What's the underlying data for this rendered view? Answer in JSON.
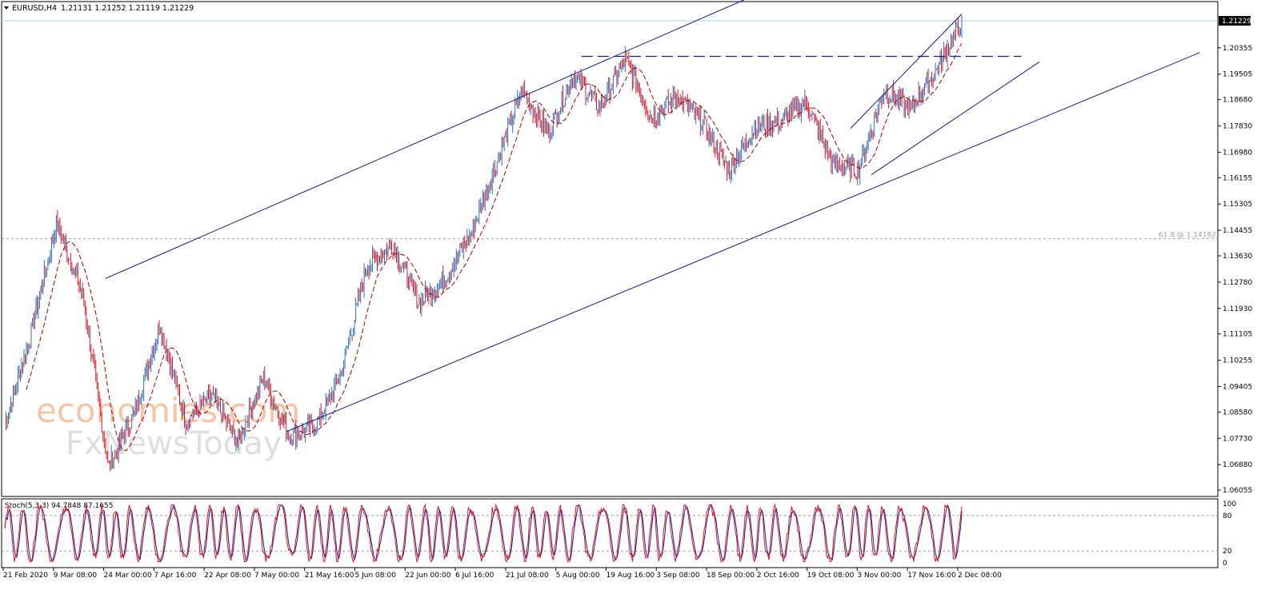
{
  "header": {
    "symbol_label": "EURUSD,H4",
    "quote_text": "1.21131 1.21252 1.21119 1.21229"
  },
  "watermark": {
    "line1": "economies.com",
    "line2": "FxNewsToday"
  },
  "colors": {
    "up_candle": "#2e6fba",
    "down_candle": "#e0141e",
    "trendline": "#1a1a8c",
    "moving_average": "#a00000",
    "stoch_main": "#e0141e",
    "stoch_signal": "#1a1a8c",
    "price_badge": "#000000",
    "watermark": "#f5b183"
  },
  "chart_data": [
    {
      "type": "candlestick",
      "name": "EURUSD,H4",
      "price_axis_ticks": [
        "1.20355",
        "1.19505",
        "1.18680",
        "1.17830",
        "1.16980",
        "1.16155",
        "1.15305",
        "1.14455",
        "1.13630",
        "1.12780",
        "1.11930",
        "1.11105",
        "1.10255",
        "1.09405",
        "1.08580",
        "1.07730",
        "1.06880",
        "1.06055"
      ],
      "price_range": [
        1.0585,
        1.2185
      ],
      "time_axis_labels": [
        "21 Feb 2020",
        "9 Mar 08:00",
        "24 Mar 00:00",
        "7 Apr 16:00",
        "22 Apr 08:00",
        "7 May 00:00",
        "21 May 16:00",
        "5 Jun 08:00",
        "22 Jun 00:00",
        "6 Jul 16:00",
        "21 Jul 08:00",
        "5 Aug 00:00",
        "19 Aug 16:00",
        "3 Sep 08:00",
        "18 Sep 00:00",
        "2 Oct 16:00",
        "19 Oct 08:00",
        "3 Nov 00:00",
        "17 Nov 16:00",
        "2 Dec 08:00"
      ],
      "current_price": "1.21229",
      "fibonacci_level_label": "61.8 @ 1.14182",
      "fibonacci_level_value": 1.14182,
      "resistance_level": 1.2008,
      "price_path": [
        {
          "date": "21 Feb 2020",
          "close": 1.082
        },
        {
          "date": "2 Mar",
          "close": 1.111
        },
        {
          "date": "9 Mar 08:00",
          "close": 1.147
        },
        {
          "date": "12 Mar",
          "close": 1.124
        },
        {
          "date": "20 Mar",
          "close": 1.068
        },
        {
          "date": "24 Mar 00:00",
          "close": 1.085
        },
        {
          "date": "27 Mar",
          "close": 1.114
        },
        {
          "date": "7 Apr 16:00",
          "close": 1.083
        },
        {
          "date": "15 Apr",
          "close": 1.091
        },
        {
          "date": "22 Apr 08:00",
          "close": 1.076
        },
        {
          "date": "1 May",
          "close": 1.097
        },
        {
          "date": "7 May 00:00",
          "close": 1.078
        },
        {
          "date": "14 May",
          "close": 1.081
        },
        {
          "date": "21 May 16:00",
          "close": 1.098
        },
        {
          "date": "5 Jun 08:00",
          "close": 1.133
        },
        {
          "date": "10 Jun",
          "close": 1.14
        },
        {
          "date": "22 Jun 00:00",
          "close": 1.121
        },
        {
          "date": "6 Jul 16:00",
          "close": 1.129
        },
        {
          "date": "15 Jul",
          "close": 1.143
        },
        {
          "date": "21 Jul 08:00",
          "close": 1.166
        },
        {
          "date": "31 Jul",
          "close": 1.19
        },
        {
          "date": "5 Aug 00:00",
          "close": 1.176
        },
        {
          "date": "14 Aug",
          "close": 1.195
        },
        {
          "date": "19 Aug 16:00",
          "close": 1.184
        },
        {
          "date": "1 Sep",
          "close": 1.2
        },
        {
          "date": "3 Sep 08:00",
          "close": 1.181
        },
        {
          "date": "10 Sep",
          "close": 1.188
        },
        {
          "date": "18 Sep 00:00",
          "close": 1.179
        },
        {
          "date": "25 Sep",
          "close": 1.164
        },
        {
          "date": "2 Oct 16:00",
          "close": 1.178
        },
        {
          "date": "9 Oct",
          "close": 1.18
        },
        {
          "date": "19 Oct 08:00",
          "close": 1.186
        },
        {
          "date": "28 Oct",
          "close": 1.166
        },
        {
          "date": "3 Nov 00:00",
          "close": 1.164
        },
        {
          "date": "9 Nov",
          "close": 1.19
        },
        {
          "date": "17 Nov 16:00",
          "close": 1.184
        },
        {
          "date": "26 Nov",
          "close": 1.196
        },
        {
          "date": "2 Dec 08:00",
          "close": 1.2123
        }
      ]
    },
    {
      "type": "line",
      "name": "Stoch",
      "indicator_label": "Stoch(5,3,3) 94.7848 87.1655",
      "range": [
        0,
        100
      ],
      "axis_ticks": [
        "100",
        "80",
        "20",
        "0"
      ],
      "levels": [
        20,
        80
      ],
      "main_value": 94.7848,
      "signal_value": 87.1655
    }
  ]
}
